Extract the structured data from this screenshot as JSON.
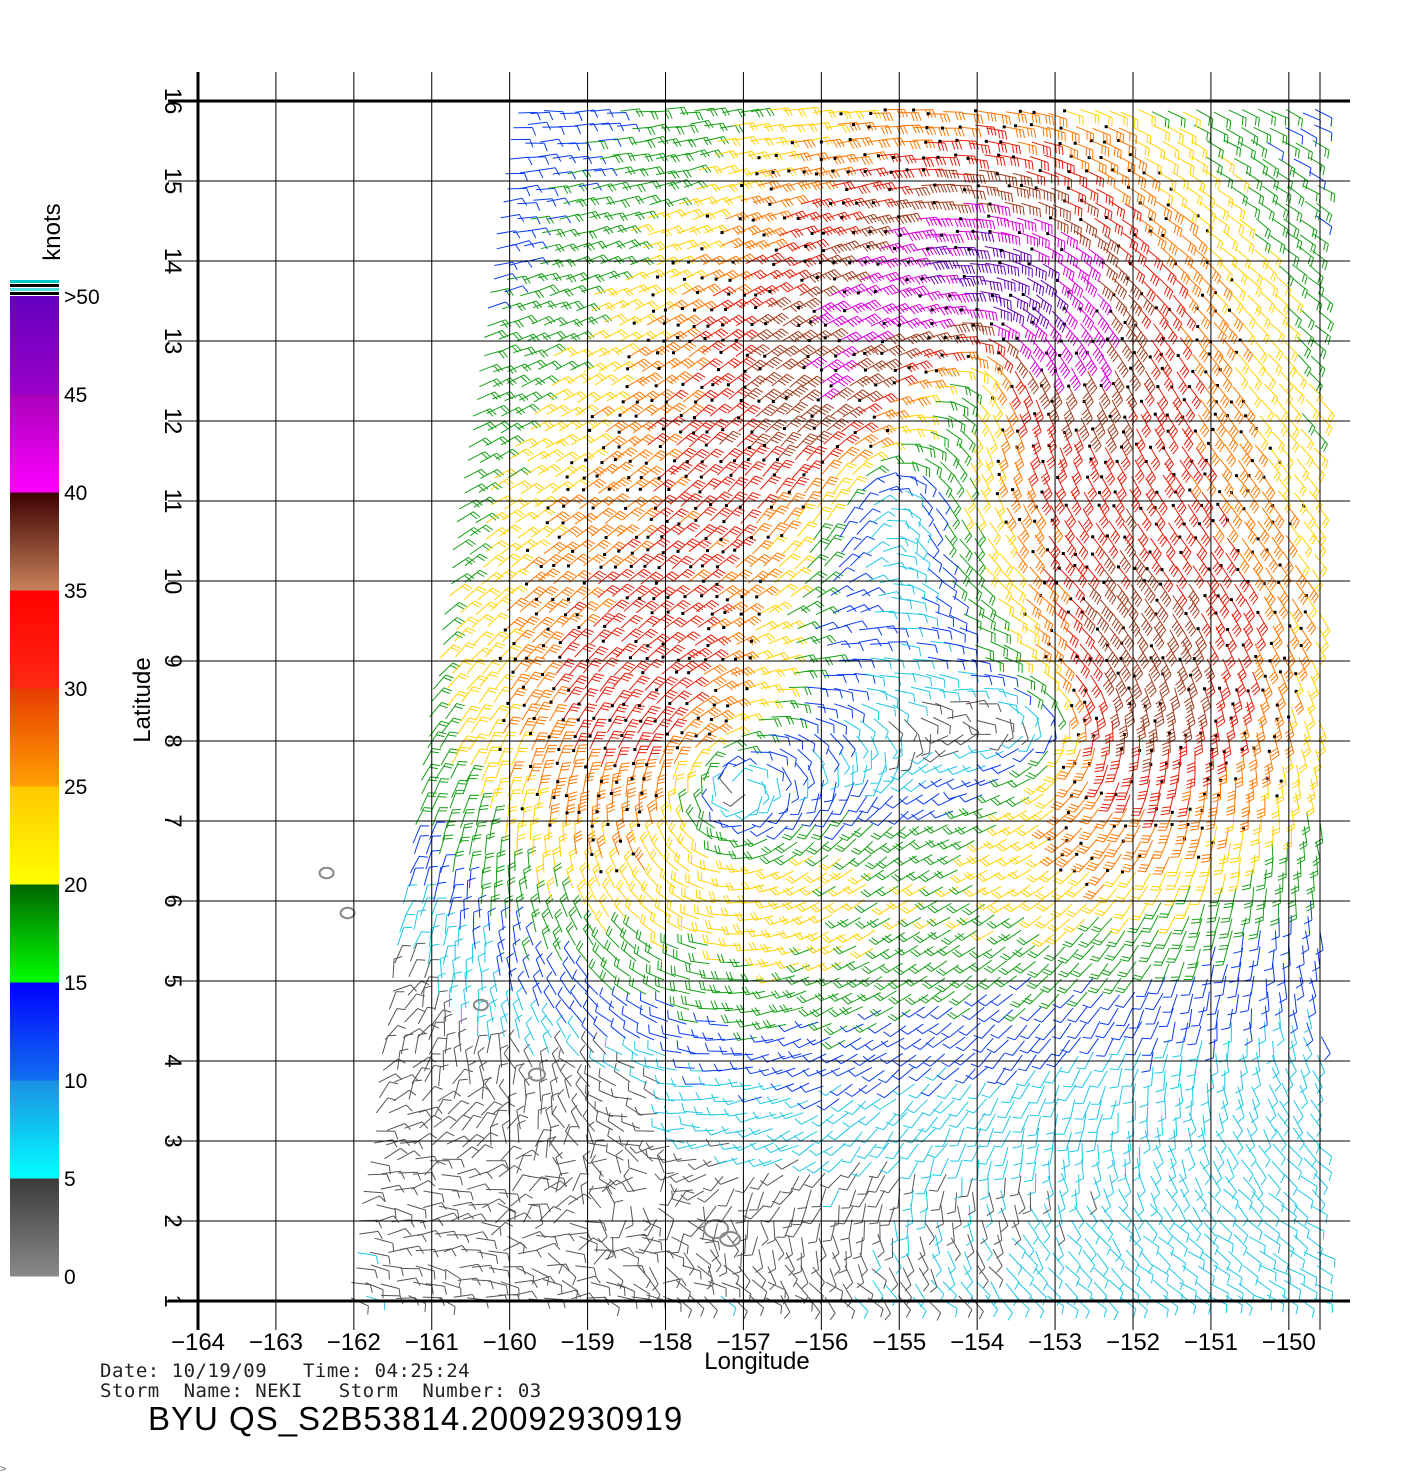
{
  "map": {
    "x_axis": {
      "label": "Longitude",
      "range": [
        -164,
        -149.6
      ],
      "ticks": [
        -164,
        -163,
        -162,
        -161,
        -160,
        -159,
        -158,
        -157,
        -156,
        -155,
        -154,
        -153,
        -152,
        -151,
        -150
      ],
      "tick_labels": [
        "−164",
        "−163",
        "−162",
        "−161",
        "−160",
        "−159",
        "−158",
        "−157",
        "−156",
        "−155",
        "−154",
        "−153",
        "−152",
        "−151",
        "−150"
      ]
    },
    "y_axis": {
      "label": "Latitude",
      "range": [
        1,
        16
      ],
      "ticks": [
        1,
        2,
        3,
        4,
        5,
        6,
        7,
        8,
        9,
        10,
        11,
        12,
        13,
        14,
        15,
        16
      ],
      "tick_labels": [
        "1",
        "2",
        "3",
        "4",
        "5",
        "6",
        "7",
        "8",
        "9",
        "10",
        "11",
        "12",
        "13",
        "14",
        "15",
        "16"
      ]
    },
    "grid": true,
    "legend_placement": "left",
    "colorbar": {
      "title": "knots",
      "labels": [
        "0",
        "5",
        "10",
        "15",
        "20",
        "25",
        "30",
        "35",
        "40",
        "45",
        ">50"
      ],
      "bins": [
        {
          "from": 0,
          "to": 5,
          "top": "#3a3a3a",
          "bottom": "#8a8a8a"
        },
        {
          "from": 5,
          "to": 10,
          "top": "#1d8fe3",
          "bottom": "#00ffff"
        },
        {
          "from": 10,
          "to": 15,
          "top": "#0000ff",
          "bottom": "#1070f0"
        },
        {
          "from": 15,
          "to": 20,
          "top": "#006600",
          "bottom": "#00ff00"
        },
        {
          "from": 20,
          "to": 25,
          "top": "#ffc800",
          "bottom": "#ffff00"
        },
        {
          "from": 25,
          "to": 30,
          "top": "#e63c00",
          "bottom": "#ffa000"
        },
        {
          "from": 30,
          "to": 35,
          "top": "#ff0000",
          "bottom": "#ff2a14"
        },
        {
          "from": 35,
          "to": 40,
          "top": "#3c0000",
          "bottom": "#c8825a"
        },
        {
          "from": 40,
          "to": 45,
          "top": "#aa00bb",
          "bottom": "#ff00ff"
        },
        {
          "from": 45,
          "to": 50,
          "top": "#6400c0",
          "bottom": "#9a00c8"
        }
      ],
      "extra_stripes": [
        "#00c8c8",
        "#000000",
        "#50dcdc",
        "#000000"
      ]
    },
    "speed_colors": [
      "#555555",
      "#1ec8e6",
      "#0a3cf0",
      "#16a016",
      "#ffd200",
      "#ff7800",
      "#e61e0a",
      "#a03c1e",
      "#dc00dc",
      "#6400b4"
    ],
    "swath": {
      "lon_left_south": -162.1,
      "lon_left_north": -159.95,
      "lon_right": -149.6,
      "lat_south": 1,
      "lat_north": 16
    },
    "vortices": [
      {
        "lon": -157.3,
        "lat": 7.4,
        "strength": 26,
        "core": 1.6
      },
      {
        "lon": -152.9,
        "lat": 8.3,
        "strength": 24,
        "core": 1.4
      },
      {
        "lon": -155.4,
        "lat": 11.4,
        "strength": 18,
        "core": 1.3
      },
      {
        "lon": -153.9,
        "lat": 13.0,
        "strength": 22,
        "core": 1.1
      }
    ],
    "calm_zone": {
      "lon": -161.5,
      "lat": 4.8,
      "radius": 1.7
    },
    "islands": [
      {
        "lon": -162.35,
        "lat": 6.35
      },
      {
        "lon": -162.08,
        "lat": 5.85
      },
      {
        "lon": -160.37,
        "lat": 4.7
      },
      {
        "lon": -159.65,
        "lat": 3.83
      },
      {
        "lon": -157.35,
        "lat": 1.9
      }
    ]
  },
  "caption": {
    "line1": "Date: 10/19/09   Time: 04:25:24",
    "line2": "Storm  Name: NEKI   Storm  Number: 03",
    "line3": "BYU  QS_S2B53814.20092930919"
  },
  "corner_mark": ">"
}
